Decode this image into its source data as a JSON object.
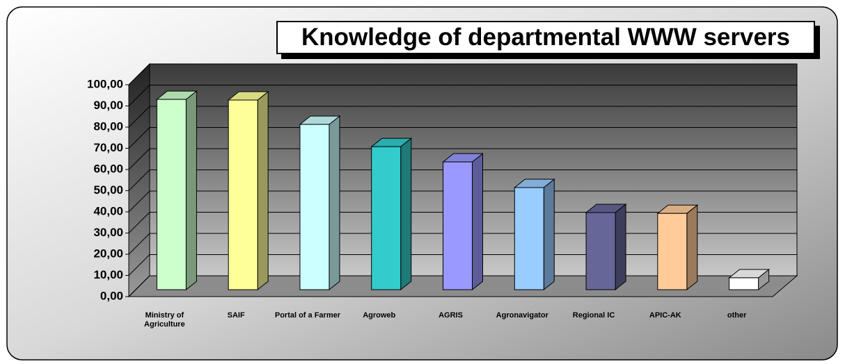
{
  "chart_data": {
    "type": "bar3d",
    "title": "Knowledge of departmental WWW servers",
    "categories": [
      "Ministry of Agriculture",
      "SAIF",
      "Portal of a Farmer",
      "Agroweb",
      "AGRIS",
      "Agronavigator",
      "Regional IC",
      "APIC-AK",
      "other"
    ],
    "values": [
      89.8,
      89.5,
      78,
      67.5,
      60.3,
      48.2,
      36.4,
      36,
      5.6
    ],
    "colors": [
      "#ccffcc",
      "#ffff99",
      "#ccffff",
      "#33cccc",
      "#9999ff",
      "#99ccff",
      "#666699",
      "#ffcc99",
      "#ffffff"
    ],
    "ylim": [
      0,
      100
    ],
    "yticks": [
      {
        "value": 0,
        "label": "0,00"
      },
      {
        "value": 10,
        "label": "10,00"
      },
      {
        "value": 20,
        "label": "20,00"
      },
      {
        "value": 30,
        "label": "30,00"
      },
      {
        "value": 40,
        "label": "40,00"
      },
      {
        "value": 50,
        "label": "50,00"
      },
      {
        "value": 60,
        "label": "60,00"
      },
      {
        "value": 70,
        "label": "70,00"
      },
      {
        "value": 80,
        "label": "80,00"
      },
      {
        "value": 90,
        "label": "90,00"
      },
      {
        "value": 100,
        "label": "100,00"
      }
    ],
    "grid": true
  }
}
